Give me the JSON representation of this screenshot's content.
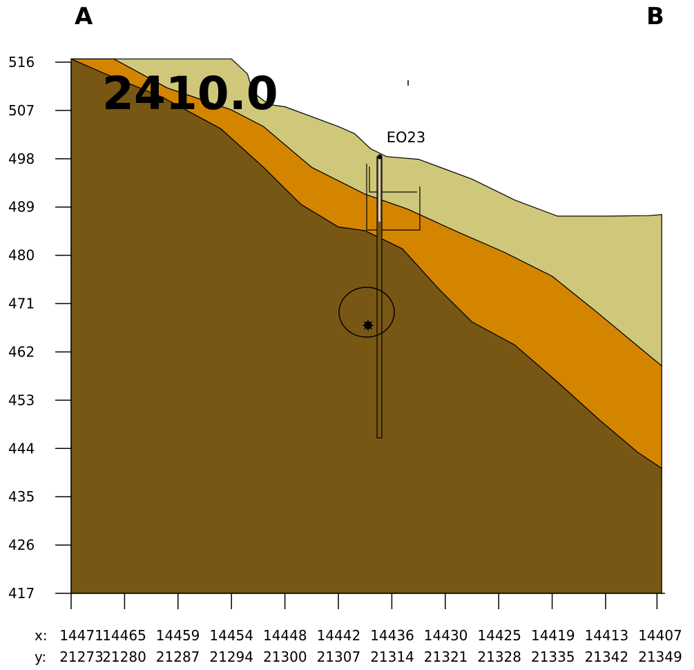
{
  "header": {
    "left_label": "A",
    "right_label": "B"
  },
  "section_label": "2410.0",
  "borehole": {
    "name": "EO23",
    "top_elev": 498.4,
    "bottom_elev": 445.9,
    "liner_bottom_elev": 485.6
  },
  "colors": {
    "bedrock": "#775713",
    "middle_layer": "#d48500",
    "top_layer": "#cfc87a",
    "outline": "#000000"
  },
  "chart_data": {
    "type": "cross-section",
    "title": "2410.0",
    "ylim": [
      417,
      516
    ],
    "yticks": [
      516,
      507,
      498,
      489,
      480,
      471,
      462,
      453,
      444,
      435,
      426,
      417
    ],
    "x_ticks_count": 12,
    "x_prefix": "x:",
    "y_prefix": "y:",
    "x_labels": [
      "14471",
      "14465",
      "14459",
      "14454",
      "14448",
      "14442",
      "14436",
      "14430",
      "14425",
      "14419",
      "14413",
      "14407"
    ],
    "y_labels": [
      "21273",
      "21280",
      "21287",
      "21294",
      "21300",
      "21307",
      "21314",
      "21321",
      "21328",
      "21335",
      "21342",
      "21349"
    ],
    "surfaces": {
      "ground": [
        [
          0,
          516.6
        ],
        [
          3,
          516.6
        ],
        [
          3.3,
          513.8
        ],
        [
          3.4,
          510.4
        ],
        [
          3.7,
          508.1
        ],
        [
          4.0,
          507.7
        ],
        [
          5.0,
          504.0
        ],
        [
          5.3,
          502.7
        ],
        [
          5.6,
          499.9
        ],
        [
          5.9,
          498.4
        ],
        [
          6.5,
          497.9
        ],
        [
          7.5,
          494.2
        ],
        [
          8.3,
          490.3
        ],
        [
          9.1,
          487.3
        ],
        [
          10.0,
          487.3
        ],
        [
          10.8,
          487.4
        ],
        [
          11.05,
          487.6
        ]
      ],
      "top_layer_base": [
        [
          0,
          516.6
        ],
        [
          0.8,
          516.6
        ],
        [
          1.8,
          511.2
        ],
        [
          3.0,
          507.1
        ],
        [
          3.6,
          504.0
        ],
        [
          4.5,
          496.4
        ],
        [
          5.5,
          491.4
        ],
        [
          6.3,
          488.6
        ],
        [
          7.2,
          484.5
        ],
        [
          8.1,
          480.6
        ],
        [
          9.0,
          476.1
        ],
        [
          9.8,
          469.7
        ],
        [
          10.6,
          463.1
        ],
        [
          11.05,
          459.4
        ]
      ],
      "bedrock_top": [
        [
          0,
          516.6
        ],
        [
          0.6,
          514.0
        ],
        [
          1.7,
          509.5
        ],
        [
          2.8,
          503.6
        ],
        [
          3.6,
          496.4
        ],
        [
          4.3,
          489.5
        ],
        [
          5.0,
          485.3
        ],
        [
          5.5,
          484.6
        ],
        [
          6.2,
          481.2
        ],
        [
          6.9,
          473.5
        ],
        [
          7.5,
          467.6
        ],
        [
          8.3,
          463.3
        ],
        [
          9.1,
          456.4
        ],
        [
          9.9,
          449.2
        ],
        [
          10.6,
          443.3
        ],
        [
          11.05,
          440.3
        ]
      ]
    }
  }
}
